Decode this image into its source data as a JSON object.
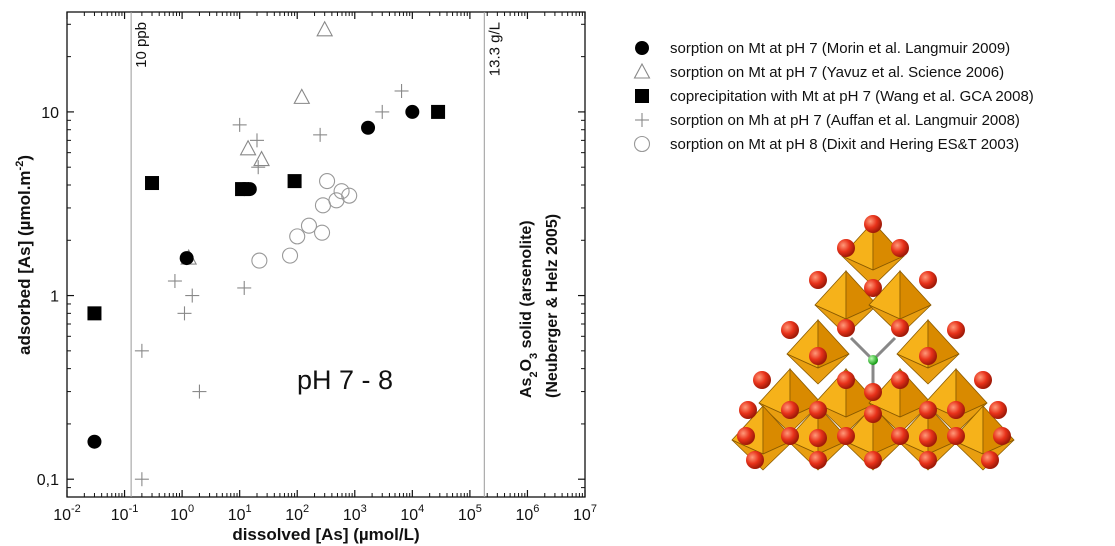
{
  "chart_data": {
    "type": "scatter",
    "x_scale": "log",
    "y_scale": "log",
    "xlim": [
      0.01,
      10000000
    ],
    "ylim": [
      0.08,
      35
    ],
    "xlabel": "dissolved [As] (µmol/L)",
    "ylabel": {
      "main": "adsorbed [As] (µmol.m",
      "sup": "-2",
      "close": ")"
    },
    "x_ticks": [
      {
        "value": 0.01,
        "base": "10",
        "exp": "-2"
      },
      {
        "value": 0.1,
        "base": "10",
        "exp": "-1"
      },
      {
        "value": 1,
        "base": "10",
        "exp": "0"
      },
      {
        "value": 10,
        "base": "10",
        "exp": "1"
      },
      {
        "value": 100,
        "base": "10",
        "exp": "2"
      },
      {
        "value": 1000,
        "base": "10",
        "exp": "3"
      },
      {
        "value": 10000,
        "base": "10",
        "exp": "4"
      },
      {
        "value": 100000,
        "base": "10",
        "exp": "5"
      },
      {
        "value": 1000000,
        "base": "10",
        "exp": "6"
      },
      {
        "value": 10000000,
        "base": "10",
        "exp": "7"
      }
    ],
    "y_ticks": [
      {
        "value": 0.1,
        "label": "0,1"
      },
      {
        "value": 1,
        "label": "1"
      },
      {
        "value": 10,
        "label": "10"
      }
    ],
    "annotations": {
      "ph_label": "pH 7 - 8",
      "ppb_label": "10 ppb",
      "ppb_x": 0.13,
      "gl_label": "13.3 g/L",
      "gl_x": 178000,
      "solid_line1_a": "As",
      "solid_line1_sub2": "2",
      "solid_line1_b": "O",
      "solid_line1_sub3": "3",
      "solid_line1_c": " solid (arsenolite)",
      "solid_line2": "(Neuberger & Helz 2005)"
    },
    "grid": false,
    "legend_position": "right of plot",
    "series": [
      {
        "name": "sorption on Mt at pH 7 (Morin et al. Langmuir 2009)",
        "marker": "filled-circle",
        "points": [
          [
            0.03,
            0.16
          ],
          [
            1.2,
            1.6
          ],
          [
            12,
            3.8
          ],
          [
            15,
            3.8
          ],
          [
            1700,
            8.2
          ],
          [
            10000,
            10
          ]
        ]
      },
      {
        "name": "sorption on Mt at pH 7 (Yavuz et al. Science 2006)",
        "marker": "open-triangle",
        "points": [
          [
            1.3,
            1.6
          ],
          [
            14,
            6.3
          ],
          [
            24,
            5.5
          ],
          [
            120,
            12
          ],
          [
            300,
            28
          ]
        ]
      },
      {
        "name": "coprecipitation with Mt at pH 7 (Wang et al. GCA 2008)",
        "marker": "filled-square",
        "points": [
          [
            0.03,
            0.8
          ],
          [
            0.3,
            4.1
          ],
          [
            11,
            3.8
          ],
          [
            90,
            4.2
          ],
          [
            28000,
            10
          ]
        ]
      },
      {
        "name": "sorption on Mh at pH 7 (Auffan et al. Langmuir 2008)",
        "marker": "plus",
        "points": [
          [
            0.2,
            0.1
          ],
          [
            0.2,
            0.5
          ],
          [
            0.75,
            1.2
          ],
          [
            1.1,
            0.8
          ],
          [
            1.5,
            1
          ],
          [
            2,
            0.3
          ],
          [
            10,
            8.5
          ],
          [
            12,
            1.1
          ],
          [
            20,
            7
          ],
          [
            21,
            5
          ],
          [
            250,
            7.5
          ],
          [
            3000,
            10
          ],
          [
            6500,
            13
          ]
        ]
      },
      {
        "name": "sorption on Mt at pH 8 (Dixit and Hering ES&T 2003)",
        "marker": "open-circle",
        "points": [
          [
            22,
            1.55
          ],
          [
            75,
            1.65
          ],
          [
            100,
            2.1
          ],
          [
            160,
            2.4
          ],
          [
            270,
            2.2
          ],
          [
            280,
            3.1
          ],
          [
            330,
            4.2
          ],
          [
            480,
            3.3
          ],
          [
            590,
            3.7
          ],
          [
            800,
            3.5
          ]
        ]
      }
    ]
  }
}
